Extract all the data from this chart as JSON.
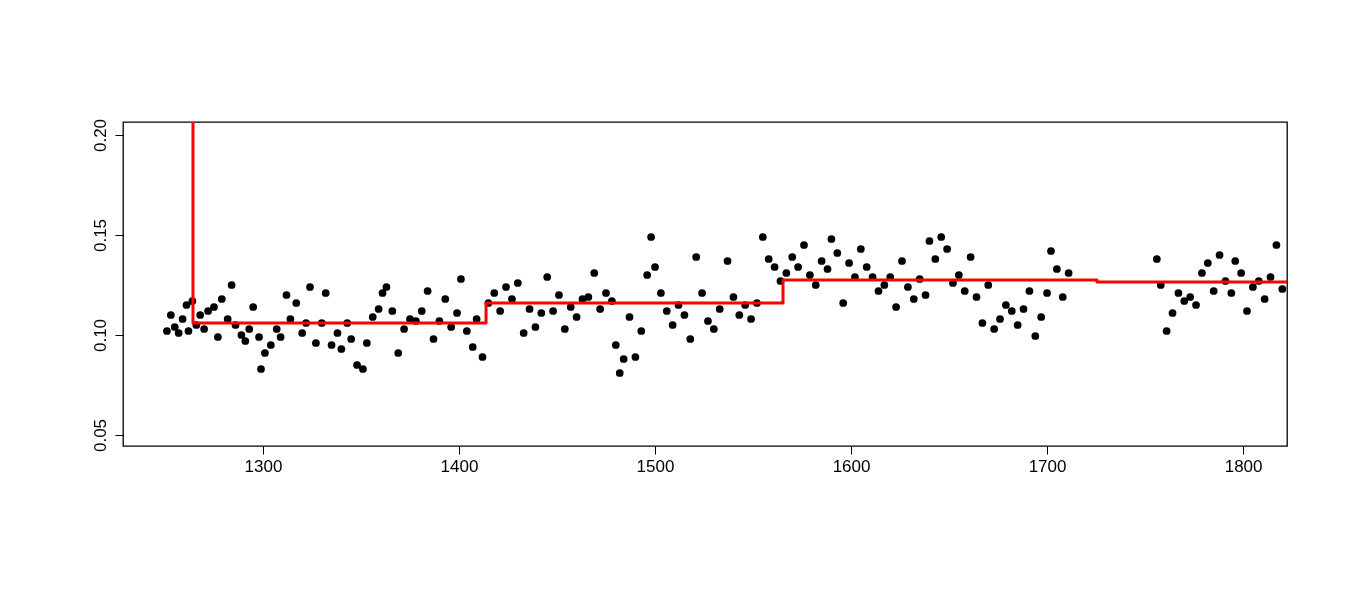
{
  "chart_data": {
    "type": "scatter",
    "xlim": [
      1228.6,
      1822.4
    ],
    "ylim": [
      0.0445,
      0.2065
    ],
    "xticks": [
      {
        "value": 1300,
        "label": "1300"
      },
      {
        "value": 1400,
        "label": "1400"
      },
      {
        "value": 1500,
        "label": "1500"
      },
      {
        "value": 1600,
        "label": "1600"
      },
      {
        "value": 1700,
        "label": "1700"
      },
      {
        "value": 1800,
        "label": "1800"
      }
    ],
    "yticks": [
      {
        "value": 0.05,
        "label": "0.05"
      },
      {
        "value": 0.1,
        "label": "0.10"
      },
      {
        "value": 0.15,
        "label": "0.15"
      },
      {
        "value": 0.2,
        "label": "0.20"
      }
    ],
    "grid": false,
    "series": [
      {
        "color": "#000000",
        "marker": "circle",
        "x": [
          1251,
          1253,
          1255,
          1257,
          1259,
          1261,
          1262,
          1264,
          1266,
          1268,
          1270,
          1272,
          1275,
          1277,
          1279,
          1282,
          1284,
          1286,
          1289,
          1291,
          1293,
          1295,
          1298,
          1299,
          1301,
          1304,
          1307,
          1309,
          1312,
          1314,
          1317,
          1320,
          1322,
          1324,
          1327,
          1330,
          1332,
          1335,
          1338,
          1340,
          1343,
          1345,
          1348,
          1351,
          1353,
          1356,
          1359,
          1361,
          1363,
          1366,
          1369,
          1372,
          1375,
          1378,
          1381,
          1384,
          1387,
          1390,
          1393,
          1396,
          1399,
          1401,
          1404,
          1407,
          1409,
          1412,
          1415,
          1418,
          1421,
          1424,
          1427,
          1430,
          1433,
          1436,
          1439,
          1442,
          1445,
          1448,
          1451,
          1454,
          1457,
          1460,
          1463,
          1466,
          1469,
          1472,
          1475,
          1478,
          1480,
          1482,
          1484,
          1487,
          1490,
          1493,
          1496,
          1498,
          1500,
          1503,
          1506,
          1509,
          1512,
          1515,
          1518,
          1521,
          1524,
          1527,
          1530,
          1533,
          1537,
          1540,
          1543,
          1546,
          1549,
          1552,
          1555,
          1558,
          1561,
          1564,
          1567,
          1570,
          1573,
          1576,
          1579,
          1582,
          1585,
          1588,
          1590,
          1593,
          1596,
          1599,
          1602,
          1605,
          1608,
          1611,
          1614,
          1617,
          1620,
          1623,
          1626,
          1629,
          1632,
          1635,
          1638,
          1640,
          1643,
          1646,
          1649,
          1652,
          1655,
          1658,
          1661,
          1664,
          1667,
          1670,
          1673,
          1676,
          1679,
          1682,
          1685,
          1688,
          1691,
          1694,
          1697,
          1700,
          1702,
          1705,
          1708,
          1711,
          1756,
          1758,
          1761,
          1764,
          1767,
          1770,
          1773,
          1776,
          1779,
          1782,
          1785,
          1788,
          1791,
          1794,
          1796,
          1799,
          1802,
          1805,
          1808,
          1811,
          1814,
          1817,
          1820
        ],
        "values": [
          0.102,
          0.11,
          0.104,
          0.101,
          0.108,
          0.115,
          0.102,
          0.117,
          0.105,
          0.11,
          0.103,
          0.112,
          0.114,
          0.099,
          0.118,
          0.108,
          0.125,
          0.105,
          0.1,
          0.097,
          0.103,
          0.114,
          0.099,
          0.083,
          0.091,
          0.095,
          0.103,
          0.099,
          0.12,
          0.108,
          0.116,
          0.101,
          0.106,
          0.124,
          0.096,
          0.106,
          0.121,
          0.095,
          0.101,
          0.093,
          0.106,
          0.098,
          0.085,
          0.083,
          0.096,
          0.109,
          0.113,
          0.121,
          0.124,
          0.112,
          0.091,
          0.103,
          0.108,
          0.107,
          0.112,
          0.122,
          0.098,
          0.107,
          0.118,
          0.104,
          0.111,
          0.128,
          0.102,
          0.094,
          0.108,
          0.089,
          0.116,
          0.121,
          0.112,
          0.124,
          0.118,
          0.126,
          0.101,
          0.113,
          0.104,
          0.111,
          0.129,
          0.112,
          0.12,
          0.103,
          0.114,
          0.109,
          0.118,
          0.119,
          0.131,
          0.113,
          0.121,
          0.117,
          0.095,
          0.081,
          0.088,
          0.109,
          0.089,
          0.102,
          0.13,
          0.149,
          0.134,
          0.121,
          0.112,
          0.105,
          0.115,
          0.11,
          0.098,
          0.139,
          0.121,
          0.107,
          0.103,
          0.113,
          0.137,
          0.119,
          0.11,
          0.115,
          0.108,
          0.116,
          0.149,
          0.138,
          0.134,
          0.127,
          0.131,
          0.139,
          0.134,
          0.145,
          0.13,
          0.125,
          0.137,
          0.133,
          0.148,
          0.141,
          0.116,
          0.136,
          0.129,
          0.143,
          0.134,
          0.129,
          0.122,
          0.125,
          0.129,
          0.114,
          0.137,
          0.124,
          0.118,
          0.128,
          0.12,
          0.147,
          0.138,
          0.149,
          0.143,
          0.126,
          0.13,
          0.122,
          0.139,
          0.119,
          0.106,
          0.125,
          0.103,
          0.108,
          0.115,
          0.112,
          0.105,
          0.113,
          0.122,
          0.0995,
          0.109,
          0.121,
          0.142,
          0.133,
          0.119,
          0.131,
          0.138,
          0.125,
          0.102,
          0.111,
          0.121,
          0.117,
          0.119,
          0.115,
          0.131,
          0.136,
          0.122,
          0.14,
          0.127,
          0.121,
          0.137,
          0.131,
          0.112,
          0.124,
          0.127,
          0.118,
          0.129,
          0.145,
          0.123
        ]
      },
      {
        "type": "step",
        "color": "#ff0000",
        "marker": "none",
        "x": [
          1264.3,
          1264.3,
          1413.8,
          1565.3,
          1725.5,
          1822.4
        ],
        "values": [
          0.2065,
          0.106,
          0.116,
          0.1275,
          0.1265,
          0.1265
        ]
      }
    ]
  }
}
